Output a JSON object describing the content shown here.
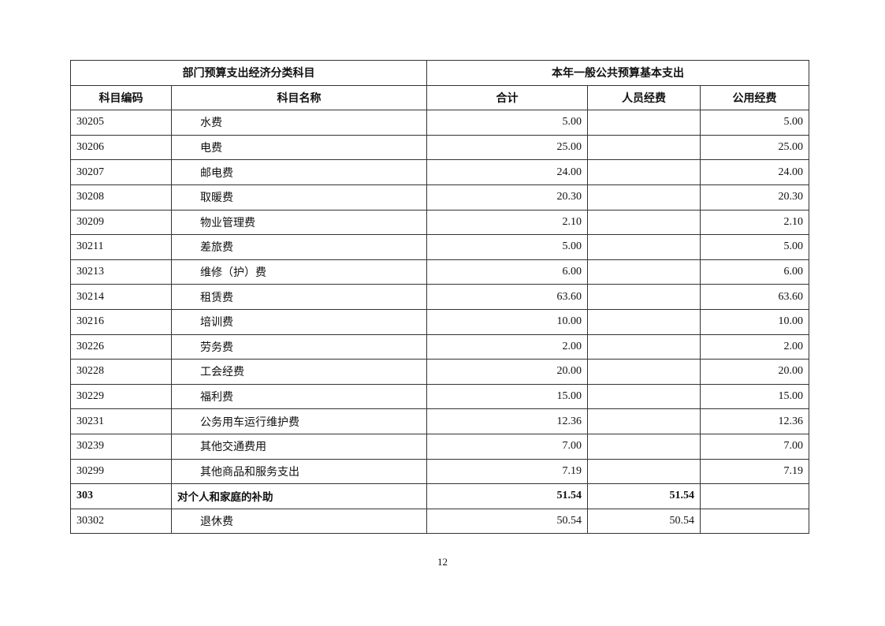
{
  "header": {
    "group_left": "部门预算支出经济分类科目",
    "group_right": "本年一般公共预算基本支出",
    "col_code": "科目编码",
    "col_name": "科目名称",
    "col_total": "合计",
    "col_personnel": "人员经费",
    "col_public": "公用经费"
  },
  "rows": [
    {
      "code": "30205",
      "name": "水费",
      "total": "5.00",
      "personnel": "",
      "public": "5.00",
      "bold": false
    },
    {
      "code": "30206",
      "name": "电费",
      "total": "25.00",
      "personnel": "",
      "public": "25.00",
      "bold": false
    },
    {
      "code": "30207",
      "name": "邮电费",
      "total": "24.00",
      "personnel": "",
      "public": "24.00",
      "bold": false
    },
    {
      "code": "30208",
      "name": "取暖费",
      "total": "20.30",
      "personnel": "",
      "public": "20.30",
      "bold": false
    },
    {
      "code": "30209",
      "name": "物业管理费",
      "total": "2.10",
      "personnel": "",
      "public": "2.10",
      "bold": false
    },
    {
      "code": "30211",
      "name": "差旅费",
      "total": "5.00",
      "personnel": "",
      "public": "5.00",
      "bold": false
    },
    {
      "code": "30213",
      "name": "维修（护）费",
      "total": "6.00",
      "personnel": "",
      "public": "6.00",
      "bold": false
    },
    {
      "code": "30214",
      "name": "租赁费",
      "total": "63.60",
      "personnel": "",
      "public": "63.60",
      "bold": false
    },
    {
      "code": "30216",
      "name": "培训费",
      "total": "10.00",
      "personnel": "",
      "public": "10.00",
      "bold": false
    },
    {
      "code": "30226",
      "name": "劳务费",
      "total": "2.00",
      "personnel": "",
      "public": "2.00",
      "bold": false
    },
    {
      "code": "30228",
      "name": "工会经费",
      "total": "20.00",
      "personnel": "",
      "public": "20.00",
      "bold": false
    },
    {
      "code": "30229",
      "name": "福利费",
      "total": "15.00",
      "personnel": "",
      "public": "15.00",
      "bold": false
    },
    {
      "code": "30231",
      "name": "公务用车运行维护费",
      "total": "12.36",
      "personnel": "",
      "public": "12.36",
      "bold": false
    },
    {
      "code": "30239",
      "name": "其他交通费用",
      "total": "7.00",
      "personnel": "",
      "public": "7.00",
      "bold": false
    },
    {
      "code": "30299",
      "name": "其他商品和服务支出",
      "total": "7.19",
      "personnel": "",
      "public": "7.19",
      "bold": false
    },
    {
      "code": "303",
      "name": "对个人和家庭的补助",
      "total": "51.54",
      "personnel": "51.54",
      "public": "",
      "bold": true
    },
    {
      "code": "30302",
      "name": "退休费",
      "total": "50.54",
      "personnel": "50.54",
      "public": "",
      "bold": false
    }
  ],
  "page_number": "12"
}
